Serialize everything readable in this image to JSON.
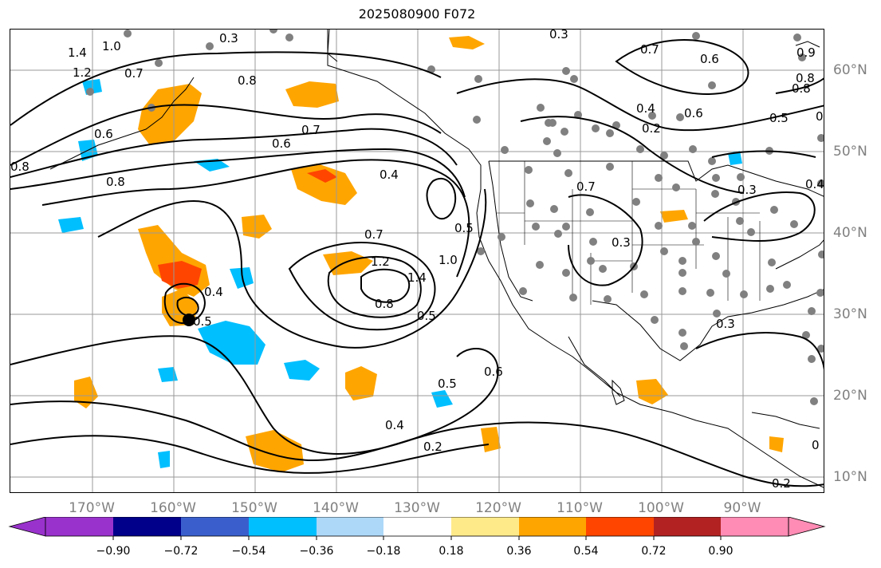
{
  "title": "2025080900 F072",
  "longitude_labels": [
    "170°W",
    "160°W",
    "150°W",
    "140°W",
    "130°W",
    "120°W",
    "110°W",
    "100°W",
    "90°W"
  ],
  "latitude_labels": [
    "60°N",
    "50°N",
    "40°N",
    "30°N",
    "20°N",
    "10°N"
  ],
  "contour_labels": [
    "0.3",
    "0.3",
    "1.4",
    "1.2",
    "1.0",
    "0.7",
    "0.8",
    "0.8",
    "0.7",
    "0.6",
    "0.8",
    "0.4",
    "0.7",
    "0.5",
    "1.2",
    "1.4",
    "1.0",
    "0.8",
    "0.5",
    "0.6",
    "0.5",
    "0.4",
    "0.2",
    "0.4",
    "0.5",
    "0.6",
    "0.7",
    "0.6",
    "0.8",
    "0.5",
    "0.4",
    "0.2",
    "0.7",
    "0.3",
    "0.3",
    "0.3",
    "0.4",
    "0.2",
    "0.6",
    "0.6",
    "0.8",
    "0.9",
    "0"
  ],
  "colorbar": {
    "ticks": [
      "−0.90",
      "−0.72",
      "−0.54",
      "−0.36",
      "−0.18",
      "0.18",
      "0.36",
      "0.54",
      "0.72",
      "0.90"
    ],
    "colors": [
      "#9932cc",
      "#00008b",
      "#3a5fcd",
      "#00bfff",
      "#add8f8",
      "#ffffff",
      "#ffea8a",
      "#ffa500",
      "#ff4500",
      "#b22222",
      "#ff8cb4"
    ]
  },
  "colors": {
    "land_line": "#000000",
    "grid": "#999999",
    "axis_text": "#808080",
    "marker": "#808080"
  }
}
